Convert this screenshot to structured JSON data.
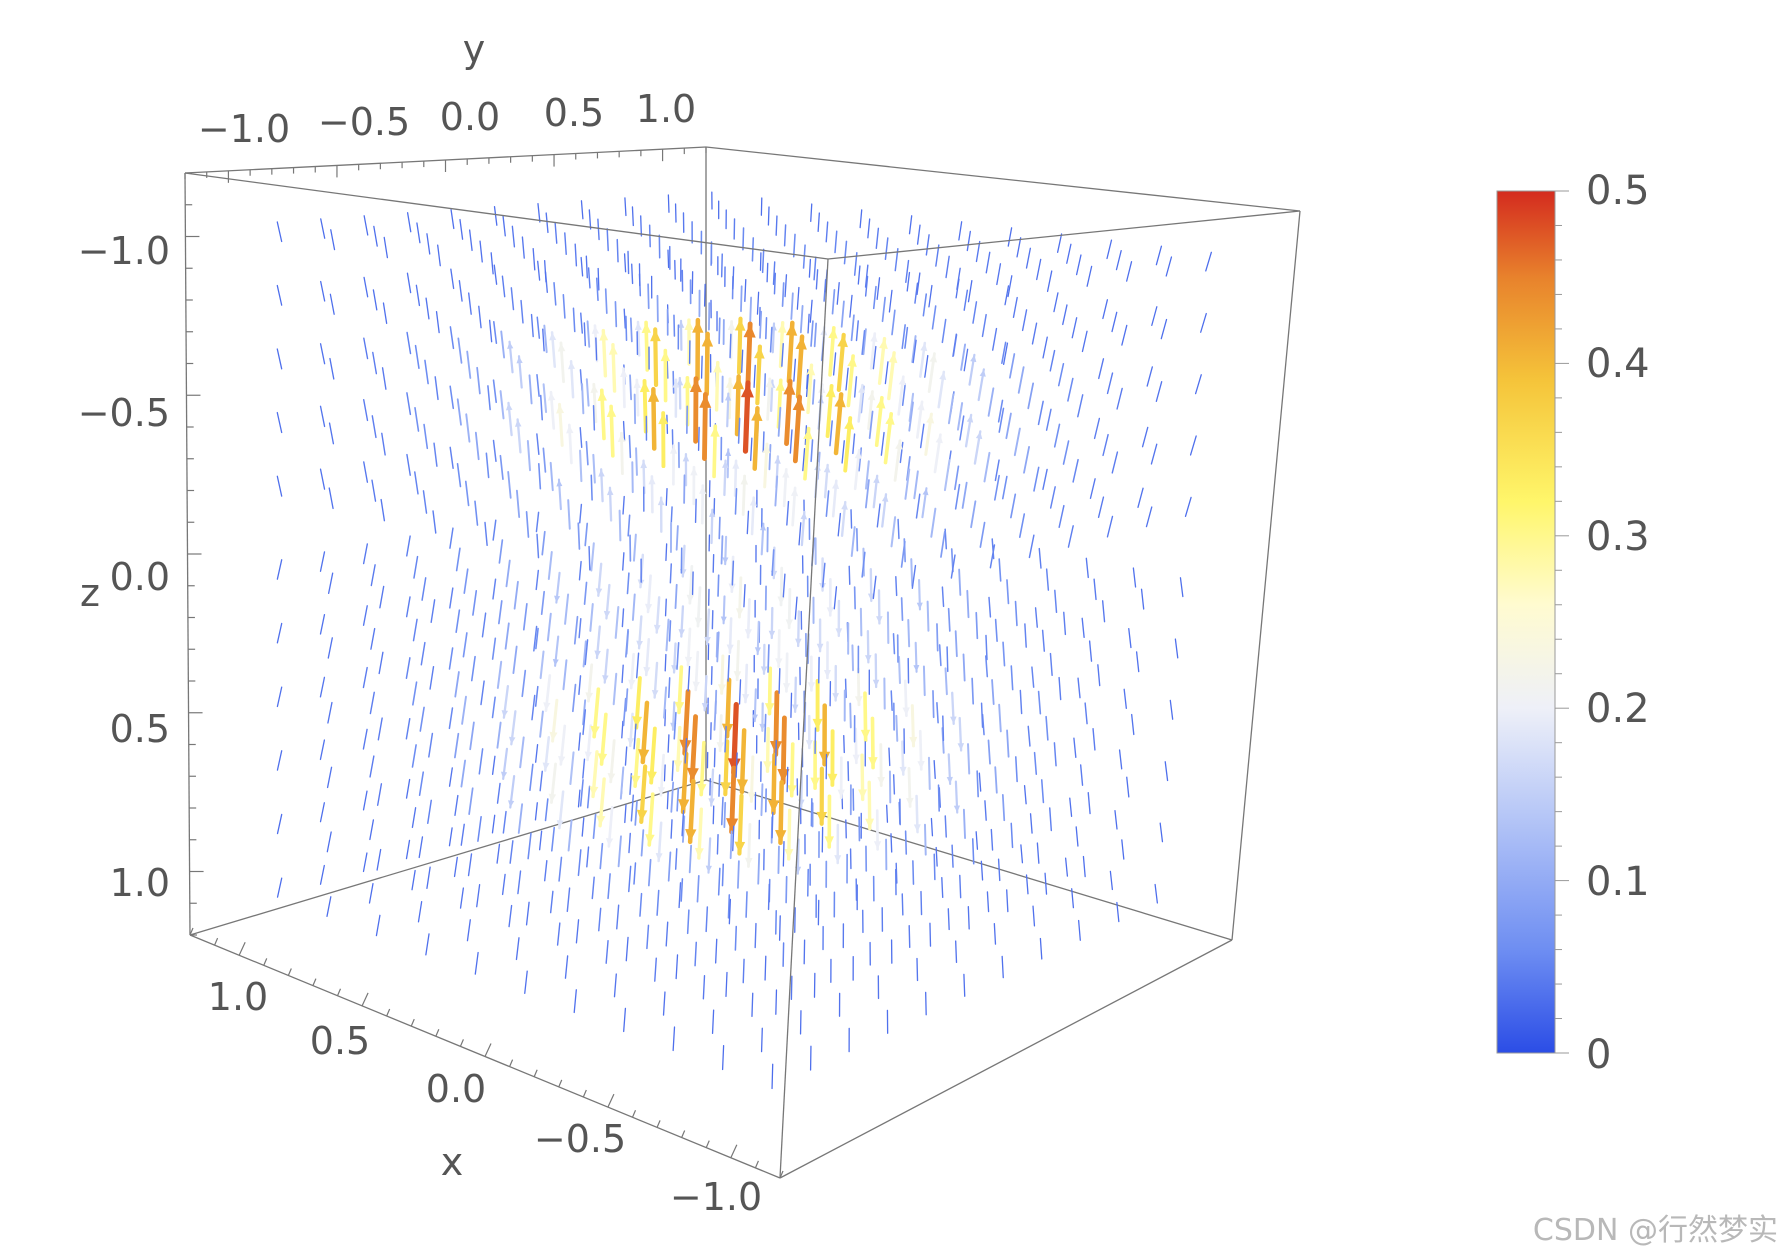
{
  "chart_data": {
    "type": "vector-field-3d",
    "axes": {
      "x": {
        "label": "x",
        "range": [
          -1.2,
          1.2
        ],
        "ticks": [
          1.0,
          0.5,
          0.0,
          -0.5,
          -1.0
        ],
        "tick_labels": [
          "1.0",
          "0.5",
          "0.0",
          "−0.5",
          "−1.0"
        ]
      },
      "y": {
        "label": "y",
        "range": [
          -1.2,
          1.2
        ],
        "ticks": [
          -1.0,
          -0.5,
          0.0,
          0.5,
          1.0
        ],
        "tick_labels": [
          "−1.0",
          "−0.5",
          "0.0",
          "0.5",
          "1.0"
        ]
      },
      "z": {
        "label": "z",
        "range": [
          -1.2,
          1.2
        ],
        "ticks": [
          -1.0,
          -0.5,
          0.0,
          0.5,
          1.0
        ],
        "tick_labels": [
          "−1.0",
          "−0.5",
          "0.0",
          "0.5",
          "1.0"
        ]
      }
    },
    "field": {
      "grid_range": [
        -1.0,
        1.0
      ],
      "strong_bands_z": [
        -0.5,
        0.5
      ],
      "max_magnitude": 0.5
    },
    "colorbar": {
      "range": [
        0,
        0.5
      ],
      "ticks": [
        0.5,
        0.4,
        0.3,
        0.2,
        0.1,
        0
      ],
      "tick_labels": [
        "0.5",
        "0.4",
        "0.3",
        "0.2",
        "0.1",
        "0"
      ],
      "colors": [
        "#2b4de6",
        "#6e8ef2",
        "#b8c8f7",
        "#eef0f8",
        "#fffbd0",
        "#fff66a",
        "#f5c43a",
        "#e8822c",
        "#d42b1f"
      ]
    },
    "grid": false
  },
  "watermark": "CSDN @行然梦实"
}
